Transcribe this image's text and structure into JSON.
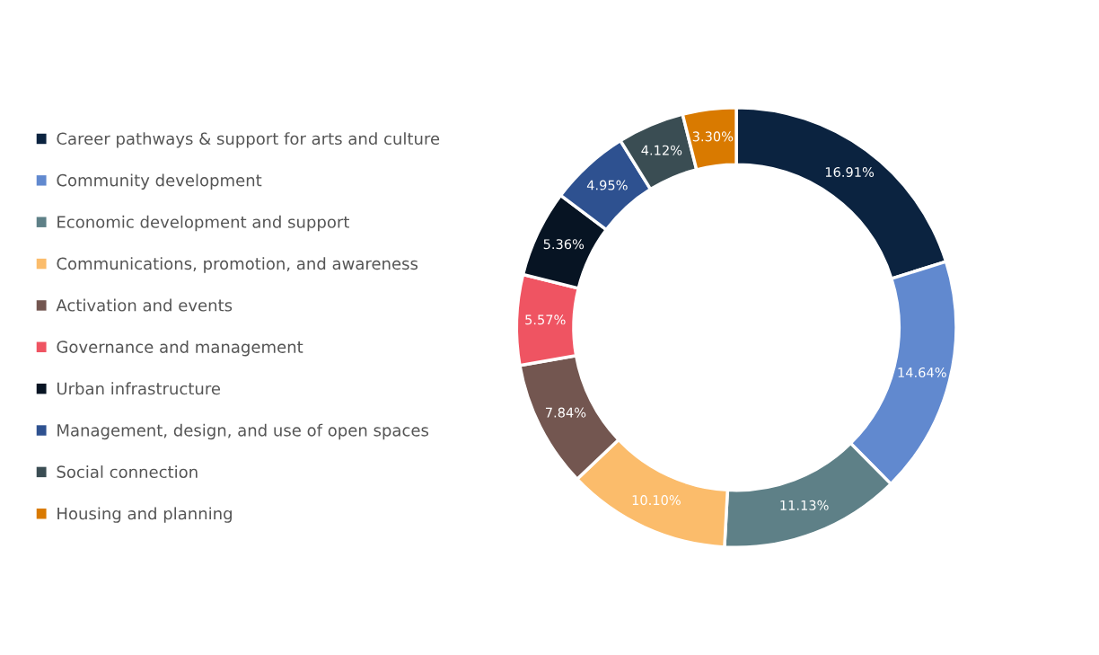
{
  "chart_data": {
    "type": "donut",
    "categories": [
      "Career pathways & support for arts and culture",
      "Community development",
      "Economic development and support",
      "Communications, promotion, and awareness",
      "Activation and events",
      "Governance and management",
      "Urban infrastructure",
      "Management, design, and use of open spaces",
      "Social connection",
      "Housing and planning"
    ],
    "values": [
      16.91,
      14.64,
      11.13,
      10.1,
      7.84,
      5.57,
      5.36,
      4.95,
      4.12,
      3.3
    ],
    "value_labels": [
      "16.91%",
      "14.64%",
      "11.13%",
      "10.10%",
      "7.84%",
      "5.57%",
      "5.36%",
      "4.95%",
      "4.12%",
      "3.30%"
    ],
    "colors": [
      "#0b2340",
      "#6189cf",
      "#5e8087",
      "#fbbc6b",
      "#735650",
      "#ef5462",
      "#071423",
      "#2e5190",
      "#3a4d53",
      "#d97a00"
    ],
    "legend": "left"
  }
}
